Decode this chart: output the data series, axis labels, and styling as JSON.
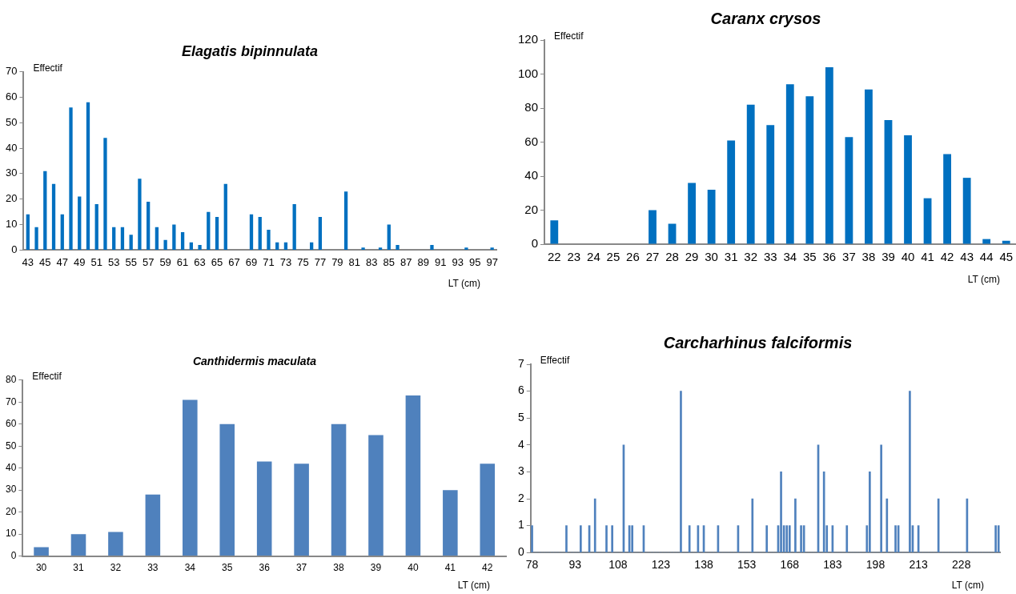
{
  "chart_data": [
    {
      "type": "bar",
      "title": "Elagatis bipinnulata",
      "ylabel": "Effectif",
      "xlabel": "LT (cm)",
      "color": "#0070c0",
      "grid": false,
      "ylim": [
        0,
        70
      ],
      "yticks": [
        0,
        10,
        20,
        30,
        40,
        50,
        60,
        70
      ],
      "categories": [
        "43",
        null,
        "45",
        null,
        "47",
        null,
        "49",
        null,
        "51",
        null,
        "53",
        null,
        "55",
        null,
        "57",
        null,
        "59",
        null,
        "61",
        null,
        "63",
        null,
        "65",
        null,
        "67",
        null,
        "69",
        null,
        "71",
        null,
        "73",
        null,
        "75",
        null,
        "77",
        null,
        "79",
        null,
        "81",
        null,
        "83",
        null,
        "85",
        null,
        "87",
        null,
        "89",
        null,
        "91",
        null,
        "93",
        null,
        "95",
        null,
        "97"
      ],
      "values": [
        14,
        9,
        31,
        26,
        14,
        56,
        21,
        58,
        18,
        44,
        9,
        9,
        6,
        28,
        19,
        9,
        4,
        10,
        7,
        3,
        2,
        15,
        13,
        26,
        0,
        0,
        14,
        13,
        8,
        3,
        3,
        18,
        0,
        3,
        13,
        0,
        0,
        23,
        0,
        1,
        0,
        1,
        10,
        2,
        0,
        0,
        0,
        2,
        0,
        0,
        0,
        1,
        0,
        0,
        1
      ]
    },
    {
      "type": "bar",
      "title": "Caranx crysos",
      "ylabel": "Effectif",
      "xlabel": "LT (cm)",
      "color": "#0070c0",
      "grid": false,
      "ylim": [
        0,
        120
      ],
      "yticks": [
        0,
        20,
        40,
        60,
        80,
        100,
        120
      ],
      "categories": [
        "22",
        "23",
        "24",
        "25",
        "26",
        "27",
        "28",
        "29",
        "30",
        "31",
        "32",
        "33",
        "34",
        "35",
        "36",
        "37",
        "38",
        "39",
        "40",
        "41",
        "42",
        "43",
        "44",
        "45"
      ],
      "values": [
        14,
        0,
        0,
        0,
        0,
        20,
        12,
        36,
        32,
        61,
        82,
        70,
        94,
        87,
        104,
        63,
        91,
        73,
        64,
        27,
        53,
        39,
        3,
        2
      ]
    },
    {
      "type": "bar",
      "title": "Canthidermis maculata",
      "ylabel": "Effectif",
      "xlabel": "LT (cm)",
      "color": "#4f81bd",
      "grid": false,
      "ylim": [
        0,
        80
      ],
      "yticks": [
        0,
        10,
        20,
        30,
        40,
        50,
        60,
        70,
        80
      ],
      "categories": [
        "30",
        "31",
        "32",
        "33",
        "34",
        "35",
        "36",
        "37",
        "38",
        "39",
        "40",
        "41",
        "42"
      ],
      "values": [
        4,
        10,
        11,
        28,
        71,
        60,
        43,
        42,
        60,
        55,
        73,
        30,
        42
      ]
    },
    {
      "type": "bar",
      "title": "Carcharhinus falciformis",
      "ylabel": "Effectif",
      "xlabel": "LT (cm)",
      "color": "#4f81bd",
      "grid": false,
      "ylim": [
        0,
        7
      ],
      "yticks": [
        0,
        1,
        2,
        3,
        4,
        5,
        6,
        7
      ],
      "categories": [
        "78",
        null,
        null,
        null,
        null,
        null,
        null,
        null,
        null,
        null,
        null,
        null,
        null,
        null,
        null,
        "93",
        null,
        null,
        null,
        null,
        null,
        null,
        null,
        null,
        null,
        null,
        null,
        null,
        null,
        null,
        "108",
        null,
        null,
        null,
        null,
        null,
        null,
        null,
        null,
        null,
        null,
        null,
        null,
        null,
        null,
        "123",
        null,
        null,
        null,
        null,
        null,
        null,
        null,
        null,
        null,
        null,
        null,
        null,
        null,
        null,
        "138",
        null,
        null,
        null,
        null,
        null,
        null,
        null,
        null,
        null,
        null,
        null,
        null,
        null,
        null,
        "153",
        null,
        null,
        null,
        null,
        null,
        null,
        null,
        null,
        null,
        null,
        null,
        null,
        null,
        null,
        "168",
        null,
        null,
        null,
        null,
        null,
        null,
        null,
        null,
        null,
        null,
        null,
        null,
        null,
        null,
        "183",
        null,
        null,
        null,
        null,
        null,
        null,
        null,
        null,
        null,
        null,
        null,
        null,
        null,
        null,
        "198",
        null,
        null,
        null,
        null,
        null,
        null,
        null,
        null,
        null,
        null,
        null,
        null,
        null,
        null,
        "213",
        null,
        null,
        null,
        null,
        null,
        null,
        null,
        null,
        null,
        null,
        null,
        null,
        null,
        null,
        "228",
        null,
        null,
        null,
        null,
        null,
        null,
        null,
        null,
        null,
        null,
        null,
        null,
        null
      ],
      "values": [
        1,
        0,
        0,
        0,
        0,
        0,
        0,
        0,
        0,
        0,
        0,
        0,
        1,
        0,
        0,
        0,
        0,
        1,
        0,
        0,
        1,
        0,
        2,
        0,
        0,
        0,
        1,
        0,
        1,
        0,
        0,
        0,
        4,
        0,
        1,
        1,
        0,
        0,
        0,
        1,
        0,
        0,
        0,
        0,
        0,
        0,
        0,
        0,
        0,
        0,
        0,
        0,
        6,
        0,
        0,
        1,
        0,
        0,
        1,
        0,
        1,
        0,
        0,
        0,
        0,
        1,
        0,
        0,
        0,
        0,
        0,
        0,
        1,
        0,
        0,
        0,
        0,
        2,
        0,
        0,
        0,
        0,
        1,
        0,
        0,
        0,
        1,
        3,
        1,
        1,
        1,
        0,
        2,
        0,
        1,
        1,
        0,
        0,
        0,
        0,
        4,
        0,
        3,
        1,
        0,
        1,
        0,
        0,
        0,
        0,
        1,
        0,
        0,
        0,
        0,
        0,
        0,
        1,
        3,
        0,
        0,
        0,
        4,
        0,
        2,
        0,
        0,
        1,
        1,
        0,
        0,
        0,
        6,
        1,
        0,
        1,
        0,
        0,
        0,
        0,
        0,
        0,
        2,
        0,
        0,
        0,
        0,
        0,
        0,
        0,
        0,
        0,
        2,
        0,
        0,
        0,
        0,
        0,
        0,
        0,
        0,
        0,
        1,
        1
      ]
    }
  ]
}
